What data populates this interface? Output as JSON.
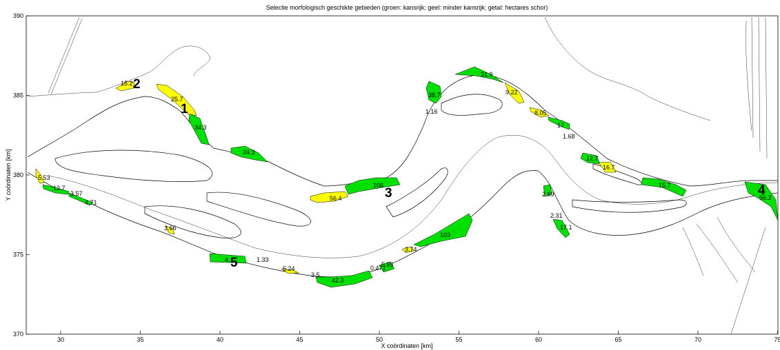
{
  "title": "Selectie morfologisch geschikte gebieden (groen: kansrijk; geel: minder kansrijk; getal: hectares schor)",
  "xlabel": "X coördinaten [km]",
  "ylabel": "Y coördinaten [km]",
  "x_ticks": [
    "30",
    "35",
    "40",
    "45",
    "50",
    "55",
    "60",
    "65",
    "70",
    "75"
  ],
  "y_ticks": [
    "390",
    "385",
    "380",
    "375",
    "370"
  ],
  "colors": {
    "green": "#00e000",
    "yellow": "#ffff00",
    "outline": "#000000"
  },
  "legend_meaning": {
    "green": "kansrijk",
    "yellow": "minder kansrijk",
    "number": "hectares schor"
  },
  "areas": [
    {
      "label": "15.2",
      "class": "minder kansrijk"
    },
    {
      "label": "25.7",
      "class": "minder kansrijk"
    },
    {
      "label": "34.3",
      "class": "kansrijk"
    },
    {
      "label": "24.3",
      "class": "kansrijk"
    },
    {
      "label": "5.53",
      "class": "minder kansrijk"
    },
    {
      "label": "12.7",
      "class": "kansrijk"
    },
    {
      "label": "3.57",
      "class": "kansrijk"
    },
    {
      "label": "4.71",
      "class": "kansrijk"
    },
    {
      "label": "3.66",
      "class": "minder kansrijk"
    },
    {
      "label": "4.",
      "class": "kansrijk"
    },
    {
      "label": "1.33",
      "class": "minder kansrijk"
    },
    {
      "label": "5.24",
      "class": "minder kansrijk"
    },
    {
      "label": "3.5",
      "class": "kansrijk"
    },
    {
      "label": "42.3",
      "class": "kansrijk"
    },
    {
      "label": "0.471",
      "class": "kansrijk"
    },
    {
      "label": "5.65",
      "class": "kansrijk"
    },
    {
      "label": "3.74",
      "class": "minder kansrijk"
    },
    {
      "label": "103",
      "class": "kansrijk"
    },
    {
      "label": "56.4",
      "class": "minder kansrijk"
    },
    {
      "label": "106",
      "class": "kansrijk"
    },
    {
      "label": "38.7",
      "class": "kansrijk"
    },
    {
      "label": "1.16",
      "class": "kansrijk"
    },
    {
      "label": "31.9",
      "class": "kansrijk"
    },
    {
      "label": "9.22",
      "class": "minder kansrijk"
    },
    {
      "label": "8.05",
      "class": "minder kansrijk"
    },
    {
      "label": "17",
      "class": "kansrijk"
    },
    {
      "label": "1.68",
      "class": "kansrijk"
    },
    {
      "label": "12.7",
      "class": "kansrijk"
    },
    {
      "label": "16.7",
      "class": "minder kansrijk"
    },
    {
      "label": "2.69",
      "class": "kansrijk"
    },
    {
      "label": "2.31",
      "class": "kansrijk"
    },
    {
      "label": "17.1",
      "class": "kansrijk"
    },
    {
      "label": "15.7",
      "class": "kansrijk"
    },
    {
      "label": "56.2",
      "class": "kansrijk"
    }
  ],
  "zones": [
    "1",
    "2",
    "3",
    "4",
    "5"
  ]
}
